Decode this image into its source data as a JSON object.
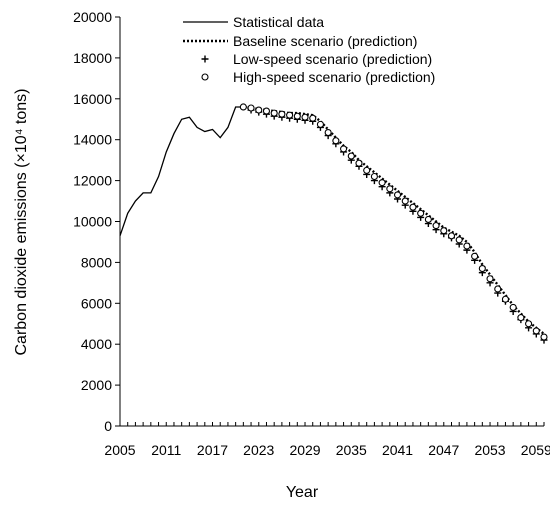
{
  "chart_data": {
    "type": "line",
    "xlabel": "Year",
    "ylabel": "Carbon dioxide emissions (×10⁴ tons)",
    "ylim": [
      0,
      20000
    ],
    "xlim": [
      2005,
      2060
    ],
    "y_ticks": [
      0,
      2000,
      4000,
      6000,
      8000,
      10000,
      12000,
      14000,
      16000,
      18000,
      20000
    ],
    "x_tick_labels": [
      "2005",
      "2011",
      "2017",
      "2023",
      "2029",
      "2035",
      "2041",
      "2047",
      "2053",
      "2059"
    ],
    "grid": false,
    "legend_position": "top-right",
    "series": [
      {
        "name": "Statistical data",
        "style": "solid",
        "x": [
          2005,
          2006,
          2007,
          2008,
          2009,
          2010,
          2011,
          2012,
          2013,
          2014,
          2015,
          2016,
          2017,
          2018,
          2019,
          2020,
          2021
        ],
        "values": [
          9300,
          10400,
          11000,
          11400,
          11400,
          12200,
          13400,
          14300,
          15000,
          15100,
          14600,
          14400,
          14500,
          14100,
          14600,
          15600,
          15600
        ]
      },
      {
        "name": "Baseline scenario (prediction)",
        "style": "dotted",
        "x": [
          2021,
          2022,
          2023,
          2024,
          2025,
          2026,
          2027,
          2028,
          2029,
          2030,
          2031,
          2032,
          2033,
          2034,
          2035,
          2036,
          2037,
          2038,
          2039,
          2040,
          2041,
          2042,
          2043,
          2044,
          2045,
          2046,
          2047,
          2048,
          2049,
          2050,
          2051,
          2052,
          2053,
          2054,
          2055,
          2056,
          2057,
          2058,
          2059,
          2060
        ],
        "values": [
          15600,
          15550,
          15500,
          15450,
          15400,
          15350,
          15300,
          15300,
          15250,
          15200,
          14900,
          14500,
          14100,
          13700,
          13400,
          13000,
          12700,
          12400,
          12100,
          11800,
          11500,
          11200,
          10900,
          10600,
          10300,
          10000,
          9700,
          9500,
          9300,
          9000,
          8500,
          7900,
          7400,
          6900,
          6400,
          5900,
          5500,
          5100,
          4800,
          4500
        ]
      },
      {
        "name": "Low-speed scenario (prediction)",
        "style": "plus",
        "x": [
          2021,
          2022,
          2023,
          2024,
          2025,
          2026,
          2027,
          2028,
          2029,
          2030,
          2031,
          2032,
          2033,
          2034,
          2035,
          2036,
          2037,
          2038,
          2039,
          2040,
          2041,
          2042,
          2043,
          2044,
          2045,
          2046,
          2047,
          2048,
          2049,
          2050,
          2051,
          2052,
          2053,
          2054,
          2055,
          2056,
          2057,
          2058,
          2059,
          2060
        ],
        "values": [
          15600,
          15450,
          15350,
          15250,
          15150,
          15100,
          15050,
          15000,
          14950,
          14900,
          14600,
          14200,
          13800,
          13400,
          13000,
          12700,
          12300,
          12000,
          11700,
          11400,
          11100,
          10800,
          10500,
          10200,
          9900,
          9600,
          9400,
          9200,
          8900,
          8600,
          8100,
          7500,
          7000,
          6500,
          6100,
          5600,
          5200,
          4800,
          4500,
          4200
        ]
      },
      {
        "name": "High-speed scenario (prediction)",
        "style": "circle",
        "x": [
          2021,
          2022,
          2023,
          2024,
          2025,
          2026,
          2027,
          2028,
          2029,
          2030,
          2031,
          2032,
          2033,
          2034,
          2035,
          2036,
          2037,
          2038,
          2039,
          2040,
          2041,
          2042,
          2043,
          2044,
          2045,
          2046,
          2047,
          2048,
          2049,
          2050,
          2051,
          2052,
          2053,
          2054,
          2055,
          2056,
          2057,
          2058,
          2059,
          2060
        ],
        "values": [
          15600,
          15550,
          15450,
          15400,
          15300,
          15250,
          15200,
          15150,
          15100,
          15050,
          14750,
          14350,
          13950,
          13550,
          13200,
          12850,
          12500,
          12200,
          11900,
          11600,
          11300,
          11000,
          10700,
          10400,
          10100,
          9800,
          9550,
          9300,
          9100,
          8800,
          8300,
          7700,
          7200,
          6700,
          6200,
          5800,
          5300,
          5000,
          4650,
          4350
        ]
      }
    ]
  }
}
